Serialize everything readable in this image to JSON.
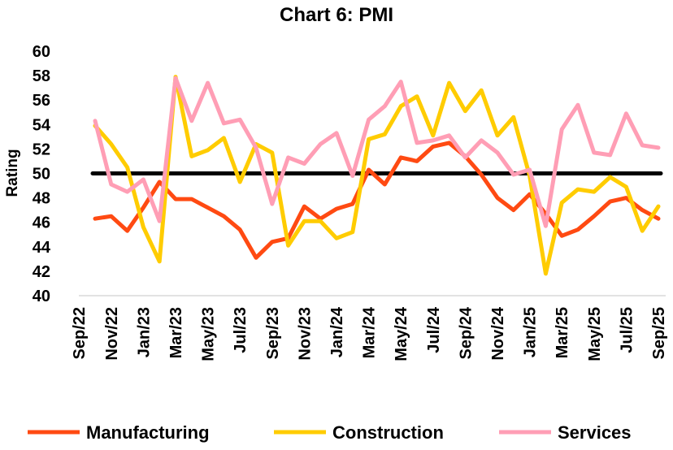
{
  "chart_data": {
    "type": "line",
    "title": "Chart 6: PMI",
    "xlabel": "",
    "ylabel": "Rating",
    "ylim": [
      40,
      60
    ],
    "yticks": [
      40,
      42,
      44,
      46,
      48,
      50,
      52,
      54,
      56,
      58,
      60
    ],
    "grid": false,
    "legend": "bottom",
    "reference_line": 50,
    "categories": [
      "Sep/22",
      "Oct/22",
      "Nov/22",
      "Dec/22",
      "Jan/23",
      "Feb/23",
      "Mar/23",
      "Apr/23",
      "May/23",
      "Jun/23",
      "Jul/23",
      "Aug/23",
      "Sep/23",
      "Oct/23",
      "Nov/23",
      "Dec/23",
      "Jan/24",
      "Feb/24",
      "Mar/24",
      "Apr/24",
      "May/24",
      "Jun/24",
      "Jul/24",
      "Aug/24",
      "Sep/24",
      "Oct/24",
      "Nov/24",
      "Dec/24",
      "Jan/25",
      "Feb/25",
      "Mar/25",
      "Apr/25",
      "May/25",
      "Jun/25",
      "Jul/25",
      "Aug/25",
      "Sep/25"
    ],
    "tick_labels": [
      "Sep/22",
      "Nov/22",
      "Jan/23",
      "Mar/23",
      "May/23",
      "Jul/23",
      "Sep/23",
      "Nov/23",
      "Jan/24",
      "Mar/24",
      "May/24",
      "Jul/24",
      "Sep/24",
      "Nov/24",
      "Jan/25",
      "Mar/25",
      "May/25",
      "Jul/25",
      "Sep/25"
    ],
    "series": [
      {
        "name": "Manufacturing",
        "color": "#FF4A12",
        "values": [
          null,
          46.3,
          46.5,
          45.3,
          47.2,
          49.3,
          47.9,
          47.9,
          47.2,
          46.5,
          45.4,
          43.1,
          44.4,
          44.7,
          47.3,
          46.3,
          47.1,
          47.5,
          50.3,
          49.1,
          51.3,
          51.0,
          52.2,
          52.5,
          51.4,
          49.9,
          48.0,
          47.0,
          48.3,
          46.7,
          44.9,
          45.4,
          46.5,
          47.7,
          48.0,
          47.0,
          46.3
        ]
      },
      {
        "name": "Construction",
        "color": "#FFCC00",
        "values": [
          null,
          53.9,
          52.4,
          50.5,
          45.6,
          42.8,
          57.9,
          51.4,
          51.9,
          52.9,
          49.3,
          52.4,
          51.7,
          44.1,
          46.1,
          46.1,
          44.7,
          45.2,
          52.8,
          53.2,
          55.5,
          56.3,
          53.1,
          57.4,
          55.1,
          56.8,
          53.1,
          54.6,
          49.8,
          41.8,
          47.6,
          48.7,
          48.5,
          49.7,
          48.9,
          45.3,
          47.3
        ]
      },
      {
        "name": "Services",
        "color": "#FF9EB5",
        "values": [
          null,
          54.3,
          49.1,
          48.5,
          49.5,
          46.1,
          57.8,
          54.3,
          57.4,
          54.1,
          54.4,
          52.1,
          47.5,
          51.3,
          50.8,
          52.4,
          53.3,
          49.8,
          54.4,
          55.5,
          57.5,
          52.5,
          52.7,
          53.1,
          51.3,
          52.7,
          51.7,
          49.9,
          50.3,
          45.7,
          53.6,
          55.6,
          51.7,
          51.5,
          54.9,
          52.3,
          52.1
        ]
      }
    ]
  }
}
